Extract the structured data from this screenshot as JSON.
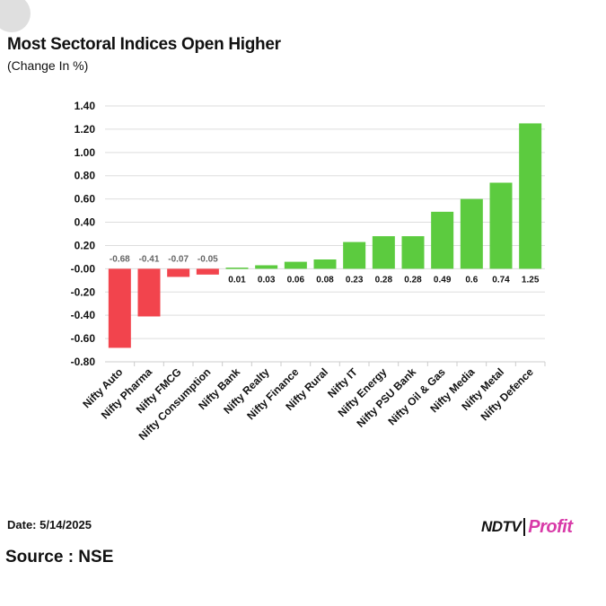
{
  "header": {
    "title": "Most Sectoral Indices Open Higher",
    "subtitle": "(Change In %)"
  },
  "footer": {
    "date": "Date: 5/14/2025",
    "source": "Source : NSE",
    "logo_ndtv": "NDTV",
    "logo_profit": "Profit"
  },
  "colors": {
    "negative": "#f2444d",
    "positive": "#5ccb3f",
    "grid": "#dddddd",
    "negative_label": "#666666",
    "positive_label": "#111111"
  },
  "chart_data": {
    "type": "bar",
    "title": "Most Sectoral Indices Open Higher",
    "subtitle": "(Change In %)",
    "categories": [
      "Nifty Auto",
      "Nifty Pharma",
      "Nifty FMCG",
      "Nifty Consumption",
      "Nifty Bank",
      "Nifty Realty",
      "Nifty Finance",
      "Nifty Rural",
      "Nifty IT",
      "Nifty Energy",
      "Nifty PSU Bank",
      "Nifty Oil & Gas",
      "Nifty Media",
      "Nifty Metal",
      "Nifty Defence"
    ],
    "values": [
      -0.68,
      -0.41,
      -0.07,
      -0.05,
      0.01,
      0.03,
      0.06,
      0.08,
      0.23,
      0.28,
      0.28,
      0.49,
      0.6,
      0.74,
      1.25
    ],
    "value_labels": [
      "-0.68",
      "-0.41",
      "-0.07",
      "-0.05",
      "0.01",
      "0.03",
      "0.06",
      "0.08",
      "0.23",
      "0.28",
      "0.28",
      "0.49",
      "0.6",
      "0.74",
      "1.25"
    ],
    "ylim": [
      -0.8,
      1.4
    ],
    "yticks": [
      1.4,
      1.2,
      1.0,
      0.8,
      0.6,
      0.4,
      0.2,
      0.0,
      -0.2,
      -0.4,
      -0.6,
      -0.8
    ],
    "ytick_labels": [
      "1.40",
      "1.20",
      "1.00",
      "0.80",
      "0.60",
      "0.40",
      "0.20",
      "-0.00",
      "-0.20",
      "-0.40",
      "-0.60",
      "-0.80"
    ],
    "grid": true,
    "legend": "none",
    "xlabel": "",
    "ylabel": ""
  }
}
